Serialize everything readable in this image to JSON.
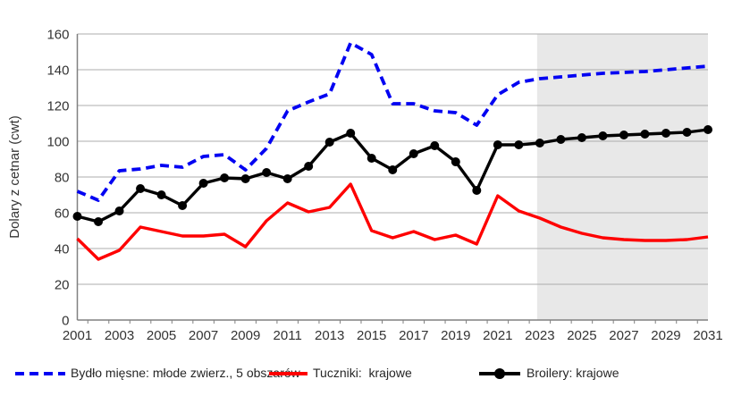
{
  "chart_data": {
    "type": "line",
    "title": "",
    "xlabel": "",
    "ylabel": "Dolary z cetnar (cwt)",
    "x": [
      2001,
      2002,
      2003,
      2004,
      2005,
      2006,
      2007,
      2008,
      2009,
      2010,
      2011,
      2012,
      2013,
      2014,
      2015,
      2016,
      2017,
      2018,
      2019,
      2020,
      2021,
      2022,
      2023,
      2024,
      2025,
      2026,
      2027,
      2028,
      2029,
      2030,
      2031
    ],
    "x_tick_labels": [
      "2001",
      "2003",
      "2005",
      "2007",
      "2009",
      "2011",
      "2013",
      "2015",
      "2017",
      "2019",
      "2021",
      "2023",
      "2025",
      "2027",
      "2029",
      "2031"
    ],
    "y_tick_labels": [
      "0",
      "20",
      "40",
      "60",
      "80",
      "100",
      "120",
      "140",
      "160"
    ],
    "y_tick_step": 20,
    "ylim": [
      0,
      160
    ],
    "grid": true,
    "legend_position": "bottom",
    "forecast_start_year": 2023,
    "series": [
      {
        "name": "Bydło mięsne: młode zwierz., 5 obszarów",
        "style": "dashed",
        "color": "#0202F2",
        "values": [
          72,
          67,
          83.5,
          84.5,
          86.5,
          85.5,
          91.5,
          92.5,
          84,
          96,
          117,
          122,
          126.5,
          155,
          148.5,
          121,
          121,
          117,
          116,
          109,
          126,
          133,
          135,
          136,
          137,
          138,
          138.5,
          139,
          140,
          141,
          142
        ]
      },
      {
        "name": "Tuczniki:  krajowe",
        "style": "solid",
        "color": "#FE0000",
        "values": [
          45.5,
          34,
          39,
          52,
          49.5,
          47,
          47,
          48,
          41,
          55.5,
          65.5,
          60.5,
          63,
          76,
          50,
          46,
          49.5,
          45,
          47.5,
          42.5,
          69.5,
          61,
          57,
          52,
          48.5,
          46,
          45,
          44.5,
          44.5,
          45,
          46.5
        ]
      },
      {
        "name": "Broilery: krajowe",
        "style": "solid",
        "marker": "circle",
        "color": "#000000",
        "values": [
          58,
          55,
          61,
          73.5,
          70,
          64,
          76.5,
          79.5,
          79,
          82.5,
          79,
          86,
          99.5,
          104.5,
          90.5,
          84,
          93,
          97.5,
          88.5,
          72.5,
          98,
          98,
          99,
          101,
          102,
          103,
          103.5,
          104,
          104.5,
          105,
          106.5
        ]
      }
    ],
    "colors": {
      "forecast_shading": "#E8E8E8",
      "gridline": "#ACACAC",
      "axis": "#808080",
      "tick_label": "#333333"
    }
  }
}
